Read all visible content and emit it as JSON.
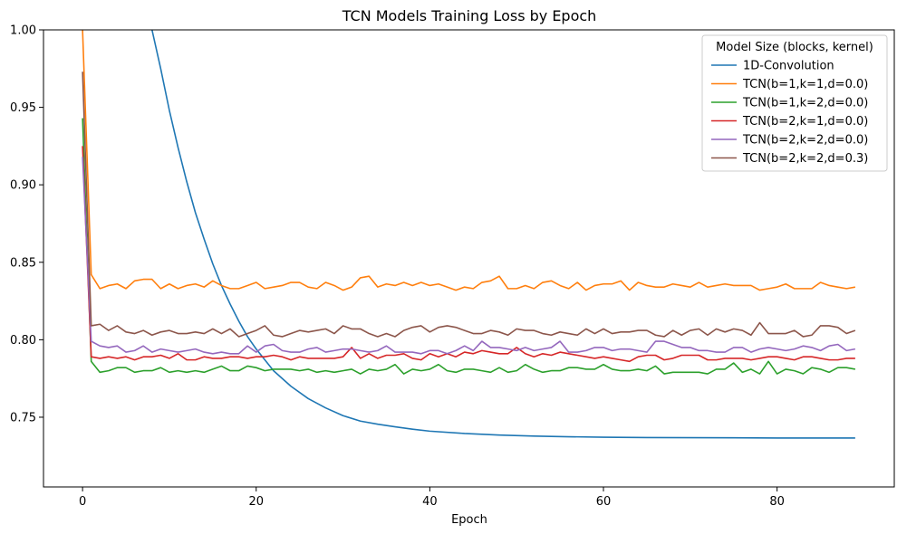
{
  "chart_data": {
    "type": "line",
    "title": "TCN Models Training Loss by Epoch",
    "xlabel": "Epoch",
    "ylabel": "",
    "xlim": [
      -4.5,
      93.5
    ],
    "ylim": [
      0.705,
      1.0
    ],
    "x_ticks": [
      0,
      20,
      40,
      60,
      80
    ],
    "y_ticks": [
      0.75,
      0.8,
      0.85,
      0.9,
      0.95,
      1.0
    ],
    "y_tick_labels": [
      "0.75",
      "0.80",
      "0.85",
      "0.90",
      "0.95",
      "1.00"
    ],
    "grid": false,
    "legend": {
      "title": "Model Size (blocks, kernel)",
      "placement": "top-right"
    },
    "series": [
      {
        "name": "1D-Convolution",
        "color": "#1f77b4",
        "x": [
          8,
          9,
          10,
          11,
          12,
          13,
          14,
          15,
          16,
          17,
          18,
          19,
          20,
          22,
          24,
          26,
          28,
          30,
          32,
          34,
          36,
          38,
          40,
          44,
          48,
          52,
          56,
          60,
          65,
          70,
          75,
          80,
          85,
          89
        ],
        "values": [
          1.0,
          0.975,
          0.948,
          0.924,
          0.902,
          0.882,
          0.865,
          0.849,
          0.835,
          0.823,
          0.812,
          0.802,
          0.794,
          0.78,
          0.77,
          0.762,
          0.756,
          0.751,
          0.7475,
          0.7455,
          0.7438,
          0.7423,
          0.741,
          0.7395,
          0.7385,
          0.7378,
          0.7374,
          0.7371,
          0.7369,
          0.7368,
          0.7367,
          0.7366,
          0.7366,
          0.7366
        ]
      },
      {
        "name": "TCN(b=1,k=1,d=0.0)",
        "color": "#ff7f0e",
        "x_start": 0,
        "values": [
          1.0,
          0.842,
          0.833,
          0.835,
          0.836,
          0.833,
          0.838,
          0.839,
          0.839,
          0.833,
          0.836,
          0.833,
          0.835,
          0.836,
          0.834,
          0.838,
          0.835,
          0.833,
          0.833,
          0.835,
          0.837,
          0.833,
          0.834,
          0.835,
          0.837,
          0.837,
          0.834,
          0.833,
          0.837,
          0.835,
          0.832,
          0.834,
          0.84,
          0.841,
          0.834,
          0.836,
          0.835,
          0.837,
          0.835,
          0.837,
          0.835,
          0.836,
          0.834,
          0.832,
          0.834,
          0.833,
          0.837,
          0.838,
          0.841,
          0.833,
          0.833,
          0.835,
          0.833,
          0.837,
          0.838,
          0.835,
          0.833,
          0.837,
          0.832,
          0.835,
          0.836,
          0.836,
          0.838,
          0.832,
          0.837,
          0.835,
          0.834,
          0.834,
          0.836,
          0.835,
          0.834,
          0.837,
          0.834,
          0.835,
          0.836,
          0.835,
          0.835,
          0.835,
          0.832,
          0.833,
          0.834,
          0.836,
          0.833,
          0.833,
          0.833,
          0.837,
          0.835,
          0.834,
          0.833,
          0.834
        ]
      },
      {
        "name": "TCN(b=1,k=2,d=0.0)",
        "color": "#2ca02c",
        "x_start": 0,
        "values": [
          0.943,
          0.786,
          0.779,
          0.78,
          0.782,
          0.782,
          0.779,
          0.78,
          0.78,
          0.782,
          0.779,
          0.78,
          0.779,
          0.78,
          0.779,
          0.781,
          0.783,
          0.78,
          0.78,
          0.783,
          0.782,
          0.78,
          0.781,
          0.781,
          0.781,
          0.78,
          0.781,
          0.779,
          0.78,
          0.779,
          0.78,
          0.781,
          0.778,
          0.781,
          0.78,
          0.781,
          0.784,
          0.778,
          0.781,
          0.78,
          0.781,
          0.784,
          0.78,
          0.779,
          0.781,
          0.781,
          0.78,
          0.779,
          0.782,
          0.779,
          0.78,
          0.784,
          0.781,
          0.779,
          0.78,
          0.78,
          0.782,
          0.782,
          0.781,
          0.781,
          0.784,
          0.781,
          0.78,
          0.78,
          0.781,
          0.78,
          0.783,
          0.778,
          0.779,
          0.779,
          0.779,
          0.779,
          0.778,
          0.781,
          0.781,
          0.785,
          0.779,
          0.781,
          0.778,
          0.786,
          0.778,
          0.781,
          0.78,
          0.778,
          0.782,
          0.781,
          0.779,
          0.782,
          0.782,
          0.781
        ]
      },
      {
        "name": "TCN(b=2,k=1,d=0.0)",
        "color": "#d62728",
        "x_start": 0,
        "values": [
          0.925,
          0.789,
          0.788,
          0.789,
          0.788,
          0.789,
          0.787,
          0.789,
          0.789,
          0.79,
          0.788,
          0.791,
          0.787,
          0.787,
          0.789,
          0.788,
          0.788,
          0.789,
          0.789,
          0.788,
          0.789,
          0.789,
          0.79,
          0.789,
          0.787,
          0.789,
          0.788,
          0.788,
          0.788,
          0.788,
          0.789,
          0.795,
          0.788,
          0.791,
          0.788,
          0.79,
          0.79,
          0.791,
          0.788,
          0.787,
          0.791,
          0.789,
          0.791,
          0.789,
          0.792,
          0.791,
          0.793,
          0.792,
          0.791,
          0.791,
          0.795,
          0.791,
          0.789,
          0.791,
          0.79,
          0.792,
          0.791,
          0.79,
          0.789,
          0.788,
          0.789,
          0.788,
          0.787,
          0.786,
          0.789,
          0.79,
          0.79,
          0.787,
          0.788,
          0.79,
          0.79,
          0.79,
          0.787,
          0.787,
          0.788,
          0.788,
          0.788,
          0.787,
          0.788,
          0.789,
          0.789,
          0.788,
          0.787,
          0.789,
          0.789,
          0.788,
          0.787,
          0.787,
          0.788,
          0.788
        ]
      },
      {
        "name": "TCN(b=2,k=2,d=0.0)",
        "color": "#9467bd",
        "x_start": 0,
        "values": [
          0.918,
          0.799,
          0.796,
          0.795,
          0.796,
          0.792,
          0.793,
          0.796,
          0.792,
          0.794,
          0.793,
          0.792,
          0.793,
          0.794,
          0.792,
          0.791,
          0.792,
          0.791,
          0.791,
          0.796,
          0.792,
          0.796,
          0.797,
          0.793,
          0.792,
          0.792,
          0.794,
          0.795,
          0.792,
          0.793,
          0.794,
          0.794,
          0.793,
          0.792,
          0.793,
          0.796,
          0.792,
          0.792,
          0.792,
          0.791,
          0.793,
          0.793,
          0.791,
          0.793,
          0.796,
          0.793,
          0.799,
          0.795,
          0.795,
          0.794,
          0.793,
          0.795,
          0.793,
          0.794,
          0.795,
          0.799,
          0.792,
          0.792,
          0.793,
          0.795,
          0.795,
          0.793,
          0.794,
          0.794,
          0.793,
          0.792,
          0.799,
          0.799,
          0.797,
          0.795,
          0.795,
          0.793,
          0.793,
          0.792,
          0.792,
          0.795,
          0.795,
          0.792,
          0.794,
          0.795,
          0.794,
          0.793,
          0.794,
          0.796,
          0.795,
          0.793,
          0.796,
          0.797,
          0.793,
          0.794
        ]
      },
      {
        "name": "TCN(b=2,k=2,d=0.3)",
        "color": "#8c564b",
        "x_start": 0,
        "values": [
          0.973,
          0.809,
          0.81,
          0.806,
          0.809,
          0.805,
          0.804,
          0.806,
          0.803,
          0.805,
          0.806,
          0.804,
          0.804,
          0.805,
          0.804,
          0.807,
          0.804,
          0.807,
          0.802,
          0.804,
          0.806,
          0.809,
          0.803,
          0.802,
          0.804,
          0.806,
          0.805,
          0.806,
          0.807,
          0.804,
          0.809,
          0.807,
          0.807,
          0.804,
          0.802,
          0.804,
          0.802,
          0.806,
          0.808,
          0.809,
          0.805,
          0.808,
          0.809,
          0.808,
          0.806,
          0.804,
          0.804,
          0.806,
          0.805,
          0.803,
          0.807,
          0.806,
          0.806,
          0.804,
          0.803,
          0.805,
          0.804,
          0.803,
          0.807,
          0.804,
          0.807,
          0.804,
          0.805,
          0.805,
          0.806,
          0.806,
          0.803,
          0.802,
          0.806,
          0.803,
          0.806,
          0.807,
          0.803,
          0.807,
          0.805,
          0.807,
          0.806,
          0.803,
          0.811,
          0.804,
          0.804,
          0.804,
          0.806,
          0.802,
          0.803,
          0.809,
          0.809,
          0.808,
          0.804,
          0.806
        ]
      }
    ]
  }
}
